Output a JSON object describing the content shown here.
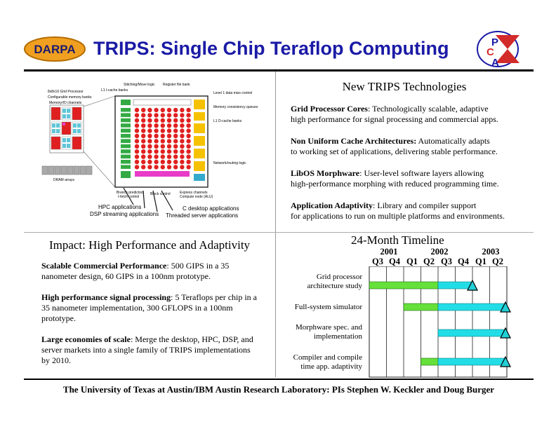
{
  "header": {
    "logo_text": "DARPA",
    "title": "TRIPS: Single Chip Teraflop Computing",
    "pca_letters": [
      "P",
      "C",
      "A"
    ]
  },
  "diagram": {
    "labels_left": [
      "8x8x16 Grid Processor",
      "Configurable memory banks",
      "Memory/IO channels",
      "DRAM arrays"
    ],
    "labels_top": [
      "Stitching/Move logic",
      "L1 I-cache banks",
      "Register file bank"
    ],
    "labels_right": [
      "Level 1 data miss control",
      "Memory consistency queues",
      "L1 D-cache banks",
      "Network/routing logic"
    ],
    "labels_bottom": [
      "Branch predictor/",
      "I-fetch control",
      "Block control",
      "Express channels",
      "Compute node (ALU)"
    ],
    "apps": [
      "HPC applications",
      "DSP streaming applications",
      "C desktop applications",
      "Threaded server applications"
    ]
  },
  "technologies": {
    "heading": "New TRIPS Technologies",
    "items": [
      {
        "term": "Grid Processor Cores",
        "sep": ": ",
        "line1": "Technologically scalable, adaptive",
        "line2": "high performance for signal processing and commercial apps."
      },
      {
        "term": "Non Uniform Cache Architectures:",
        "sep": " ",
        "line1": "Automatically adapts",
        "line2": "to working set of applications, delivering stable performance."
      },
      {
        "term": "LibOS Morphware",
        "sep": ": ",
        "line1": "User-level software layers allowing",
        "line2": "high-performance morphing with reduced programming time."
      },
      {
        "term": "Application Adaptivity",
        "sep": ": ",
        "line1": "Library and compiler support",
        "line2": "for applications to run on multiple platforms and environments."
      }
    ]
  },
  "impact": {
    "heading": "Impact: High Performance and Adaptivity",
    "items": [
      {
        "term": "Scalable Commercial Performance",
        "text": ": 500 GIPS in a 35 nanometer design, 60 GIPS in a 100nm prototype."
      },
      {
        "term": "High performance signal processing",
        "text": ": 5 Teraflops per chip in a 35 nanometer implementation, 300 GFLOPS in a 100nm prototype."
      },
      {
        "term": "Large economies of scale",
        "text": ": Merge the desktop, HPC, DSP, and server markets into a single family of TRIPS implementations by 2010."
      }
    ]
  },
  "timeline": {
    "heading": "24-Month Timeline",
    "years": [
      "2001",
      "2002",
      "2003"
    ],
    "quarters": [
      "Q3",
      "Q4",
      "Q1",
      "Q2",
      "Q3",
      "Q4",
      "Q1",
      "Q2"
    ],
    "tasks": [
      {
        "line1": "Grid processor",
        "line2": "architecture study",
        "green": [
          0,
          4
        ],
        "cyan": [
          4,
          6
        ],
        "milestone": 6
      },
      {
        "line1": "Full-system simulator",
        "line2": "",
        "green": [
          2,
          4
        ],
        "cyan": [
          4,
          8
        ],
        "milestone": 8
      },
      {
        "line1": "Morphware spec. and",
        "line2": "implementation",
        "green": null,
        "cyan": [
          4,
          8
        ],
        "milestone": 8
      },
      {
        "line1": "Compiler and compile",
        "line2": "time app. adaptivity",
        "green": [
          3,
          4
        ],
        "cyan": [
          4,
          8
        ],
        "milestone": 8
      }
    ],
    "colors": {
      "green": "#66e03a",
      "cyan": "#22dde6",
      "milestone": "#22cfd6"
    }
  },
  "footer": "The University of Texas at Austin/IBM Austin Research Laboratory: PIs Stephen W. Keckler and Doug Burger"
}
